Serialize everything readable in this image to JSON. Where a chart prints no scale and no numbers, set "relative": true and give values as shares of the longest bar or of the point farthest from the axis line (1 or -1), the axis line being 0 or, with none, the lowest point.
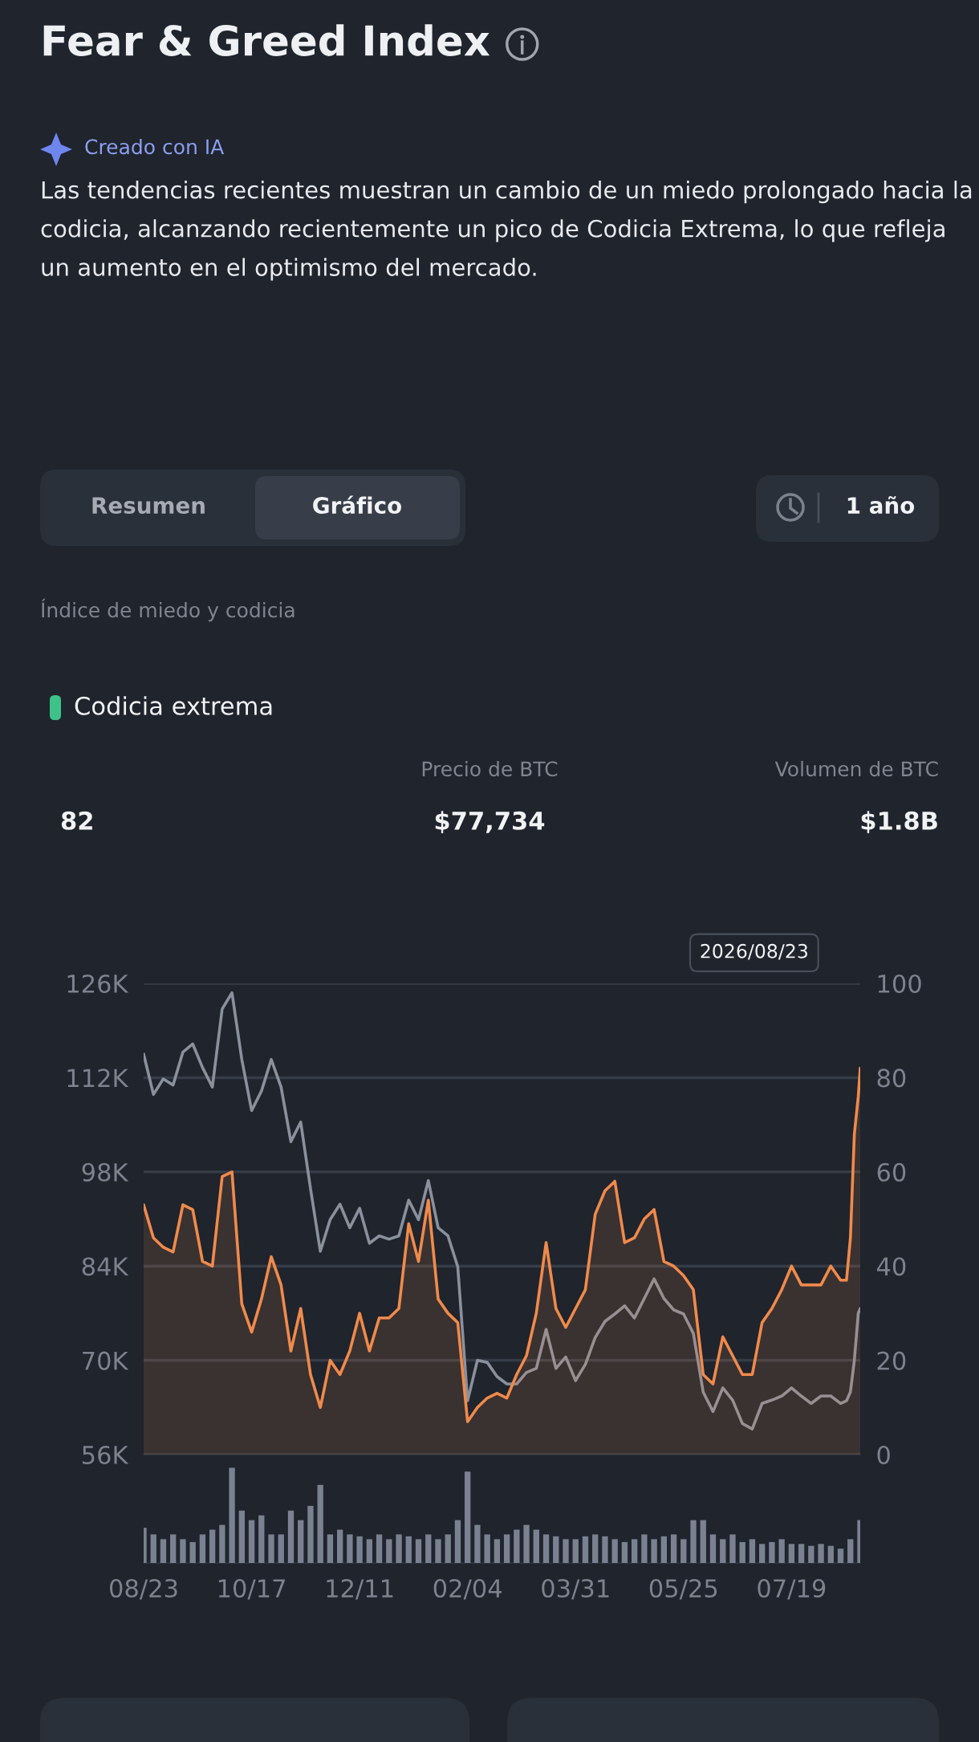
{
  "chart_data": [
    {
      "type": "other",
      "title": "Fear & Greed Index",
      "annotations": [
        "Creado con IA",
        "Las tendencias recientes muestran un cambio de un miedo prolongado hacia la codicia, alcanzando recientemente un pico de Codicia Extrema, lo que refleja un aumento en el optimismo del mercado.",
        "Resumen",
        "Gráfico",
        "1 año",
        "Índice de miedo y codicia",
        "Codicia extrema",
        "82",
        "Precio de BTC",
        "$77,734",
        "Volumen de BTC",
        "$1.8B"
      ]
    },
    {
      "type": "line",
      "x": [
        "2025-08-23",
        "2025-08-28",
        "2025-09-02",
        "2025-09-07",
        "2025-09-12",
        "2025-09-17",
        "2025-09-22",
        "2025-09-27",
        "2025-10-02",
        "2025-10-07",
        "2025-10-12",
        "2025-10-17",
        "2025-10-22",
        "2025-10-27",
        "2025-11-01",
        "2025-11-06",
        "2025-11-11",
        "2025-11-16",
        "2025-11-21",
        "2025-11-26",
        "2025-12-01",
        "2025-12-06",
        "2025-12-11",
        "2025-12-16",
        "2025-12-21",
        "2025-12-26",
        "2025-12-31",
        "2026-01-05",
        "2026-01-10",
        "2026-01-15",
        "2026-01-20",
        "2026-01-25",
        "2026-01-30",
        "2026-02-04",
        "2026-02-09",
        "2026-02-14",
        "2026-02-19",
        "2026-02-24",
        "2026-03-01",
        "2026-03-06",
        "2026-03-11",
        "2026-03-16",
        "2026-03-21",
        "2026-03-26",
        "2026-03-31",
        "2026-04-05",
        "2026-04-10",
        "2026-04-15",
        "2026-04-20",
        "2026-04-25",
        "2026-04-30",
        "2026-05-05",
        "2026-05-10",
        "2026-05-15",
        "2026-05-20",
        "2026-05-25",
        "2026-05-30",
        "2026-06-04",
        "2026-06-09",
        "2026-06-14",
        "2026-06-19",
        "2026-06-24",
        "2026-06-29",
        "2026-07-04",
        "2026-07-09",
        "2026-07-14",
        "2026-07-19",
        "2026-07-24",
        "2026-07-29",
        "2026-08-03",
        "2026-08-08",
        "2026-08-13",
        "2026-08-16",
        "2026-08-18",
        "2026-08-20",
        "2026-08-22",
        "2026-08-23"
      ],
      "series": [
        {
          "color": "#8a909c",
          "axis": "y",
          "values": [
            115500,
            109500,
            111800,
            110900,
            115800,
            117000,
            113500,
            110600,
            122200,
            124600,
            114700,
            107100,
            110000,
            114700,
            110600,
            102500,
            105400,
            95500,
            86200,
            90900,
            93200,
            89700,
            92600,
            87400,
            88500,
            88000,
            88500,
            93800,
            90900,
            96700,
            89700,
            88500,
            83900,
            64000,
            70000,
            69700,
            67600,
            66500,
            66500,
            68200,
            68800,
            74600,
            68800,
            70500,
            67000,
            69400,
            73400,
            75800,
            76900,
            78100,
            76300,
            79200,
            82100,
            79200,
            77500,
            76900,
            74000,
            65300,
            62400,
            65900,
            64100,
            60600,
            59800,
            63600,
            64100,
            64700,
            65900,
            64700,
            63600,
            64700,
            64700,
            63600,
            64000,
            65300,
            70000,
            77000,
            77700
          ]
        },
        {
          "type": "area",
          "color": "#f08a4b",
          "axis": "y2",
          "values": [
            53,
            46,
            44,
            43,
            53,
            52,
            41,
            40,
            59,
            60,
            32,
            26,
            33,
            42,
            36,
            22,
            31,
            17,
            10,
            20,
            17,
            22,
            30,
            22,
            29,
            29,
            31,
            49,
            41,
            54,
            33,
            30,
            28,
            7,
            10,
            12,
            13,
            12,
            17,
            21,
            30,
            45,
            31,
            27,
            31,
            35,
            51,
            56,
            58,
            45,
            46,
            50,
            52,
            41,
            40,
            38,
            35,
            17,
            15,
            25,
            21,
            17,
            17,
            28,
            31,
            35,
            40,
            36,
            36,
            36,
            40,
            37,
            37,
            46,
            68,
            76,
            82
          ]
        }
      ],
      "xlim": [
        "2025-08-23",
        "2026-08-23"
      ],
      "ylim": [
        56000,
        126000
      ],
      "yticks": [
        {
          "value": 56000,
          "label": "56K"
        },
        {
          "value": 70000,
          "label": "70K"
        },
        {
          "value": 84000,
          "label": "84K"
        },
        {
          "value": 98000,
          "label": "98K"
        },
        {
          "value": 112000,
          "label": "112K"
        },
        {
          "value": 126000,
          "label": "126K"
        }
      ],
      "y2lim": [
        0,
        100
      ],
      "y2ticks": [
        0,
        20,
        40,
        60,
        80,
        100
      ],
      "grid": "y",
      "tick_labels": "y",
      "annotations": [
        "2026/08/23"
      ]
    },
    {
      "type": "bar",
      "relative": true,
      "color": "#7a8190",
      "x": [
        "2025-08-23",
        "2025-08-28",
        "2025-09-02",
        "2025-09-07",
        "2025-09-12",
        "2025-09-17",
        "2025-09-22",
        "2025-09-27",
        "2025-10-02",
        "2025-10-07",
        "2025-10-12",
        "2025-10-17",
        "2025-10-22",
        "2025-10-27",
        "2025-11-01",
        "2025-11-06",
        "2025-11-11",
        "2025-11-16",
        "2025-11-21",
        "2025-11-26",
        "2025-12-01",
        "2025-12-06",
        "2025-12-11",
        "2025-12-16",
        "2025-12-21",
        "2025-12-26",
        "2025-12-31",
        "2026-01-05",
        "2026-01-10",
        "2026-01-15",
        "2026-01-20",
        "2026-01-25",
        "2026-01-30",
        "2026-02-04",
        "2026-02-09",
        "2026-02-14",
        "2026-02-19",
        "2026-02-24",
        "2026-03-01",
        "2026-03-06",
        "2026-03-11",
        "2026-03-16",
        "2026-03-21",
        "2026-03-26",
        "2026-03-31",
        "2026-04-05",
        "2026-04-10",
        "2026-04-15",
        "2026-04-20",
        "2026-04-25",
        "2026-04-30",
        "2026-05-05",
        "2026-05-10",
        "2026-05-15",
        "2026-05-20",
        "2026-05-25",
        "2026-05-30",
        "2026-06-04",
        "2026-06-09",
        "2026-06-14",
        "2026-06-19",
        "2026-06-24",
        "2026-06-29",
        "2026-07-04",
        "2026-07-09",
        "2026-07-14",
        "2026-07-19",
        "2026-07-24",
        "2026-07-29",
        "2026-08-03",
        "2026-08-08",
        "2026-08-13",
        "2026-08-18",
        "2026-08-23"
      ],
      "values": [
        0.37,
        0.3,
        0.25,
        0.3,
        0.25,
        0.22,
        0.3,
        0.35,
        0.4,
        1.0,
        0.55,
        0.45,
        0.5,
        0.3,
        0.3,
        0.55,
        0.45,
        0.6,
        0.82,
        0.3,
        0.35,
        0.3,
        0.28,
        0.25,
        0.3,
        0.25,
        0.3,
        0.28,
        0.25,
        0.3,
        0.25,
        0.3,
        0.45,
        0.96,
        0.4,
        0.3,
        0.25,
        0.3,
        0.35,
        0.4,
        0.35,
        0.3,
        0.28,
        0.25,
        0.25,
        0.28,
        0.3,
        0.28,
        0.25,
        0.22,
        0.25,
        0.3,
        0.25,
        0.28,
        0.3,
        0.25,
        0.45,
        0.45,
        0.3,
        0.25,
        0.3,
        0.22,
        0.25,
        0.2,
        0.22,
        0.25,
        0.2,
        0.2,
        0.18,
        0.2,
        0.18,
        0.15,
        0.25,
        0.45
      ],
      "xlim": [
        "2025-08-23",
        "2026-08-23"
      ],
      "xticks": [
        {
          "value": "2025-08-23",
          "label": "08/23"
        },
        {
          "value": "2025-10-17",
          "label": "10/17"
        },
        {
          "value": "2025-12-11",
          "label": "12/11"
        },
        {
          "value": "2026-02-04",
          "label": "02/04"
        },
        {
          "value": "2026-03-31",
          "label": "03/31"
        },
        {
          "value": "2026-05-25",
          "label": "05/25"
        },
        {
          "value": "2026-07-19",
          "label": "07/19"
        }
      ],
      "tick_labels": "x"
    }
  ]
}
